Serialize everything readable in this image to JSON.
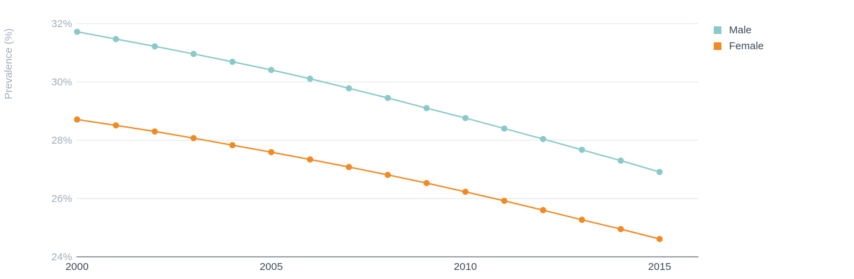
{
  "chart_data": {
    "type": "line",
    "ylabel": "Prevalence (%)",
    "ylim": [
      24,
      32
    ],
    "y_ticks": [
      "24%",
      "26%",
      "28%",
      "30%",
      "32%"
    ],
    "y_tick_values": [
      24,
      26,
      28,
      30,
      32
    ],
    "x_ticks": [
      "2000",
      "2005",
      "2010",
      "2015"
    ],
    "x_tick_values": [
      2000,
      2005,
      2010,
      2015
    ],
    "x": [
      2000,
      2001,
      2002,
      2003,
      2004,
      2005,
      2006,
      2007,
      2008,
      2009,
      2010,
      2011,
      2012,
      2013,
      2014,
      2015
    ],
    "grid": true,
    "legend_position": "top-right",
    "series": [
      {
        "name": "Male",
        "color": "#8ac9c9",
        "values": [
          31.72,
          31.47,
          31.22,
          30.96,
          30.69,
          30.41,
          30.11,
          29.78,
          29.45,
          29.1,
          28.76,
          28.4,
          28.04,
          27.67,
          27.3,
          26.91
        ]
      },
      {
        "name": "Female",
        "color": "#f08a24",
        "values": [
          28.71,
          28.51,
          28.3,
          28.07,
          27.83,
          27.59,
          27.34,
          27.08,
          26.81,
          26.53,
          26.23,
          25.92,
          25.6,
          25.27,
          24.95,
          24.61
        ]
      }
    ]
  },
  "legend": {
    "items": [
      {
        "label": "Male",
        "color": "#8ac9c9"
      },
      {
        "label": "Female",
        "color": "#f08a24"
      }
    ]
  }
}
